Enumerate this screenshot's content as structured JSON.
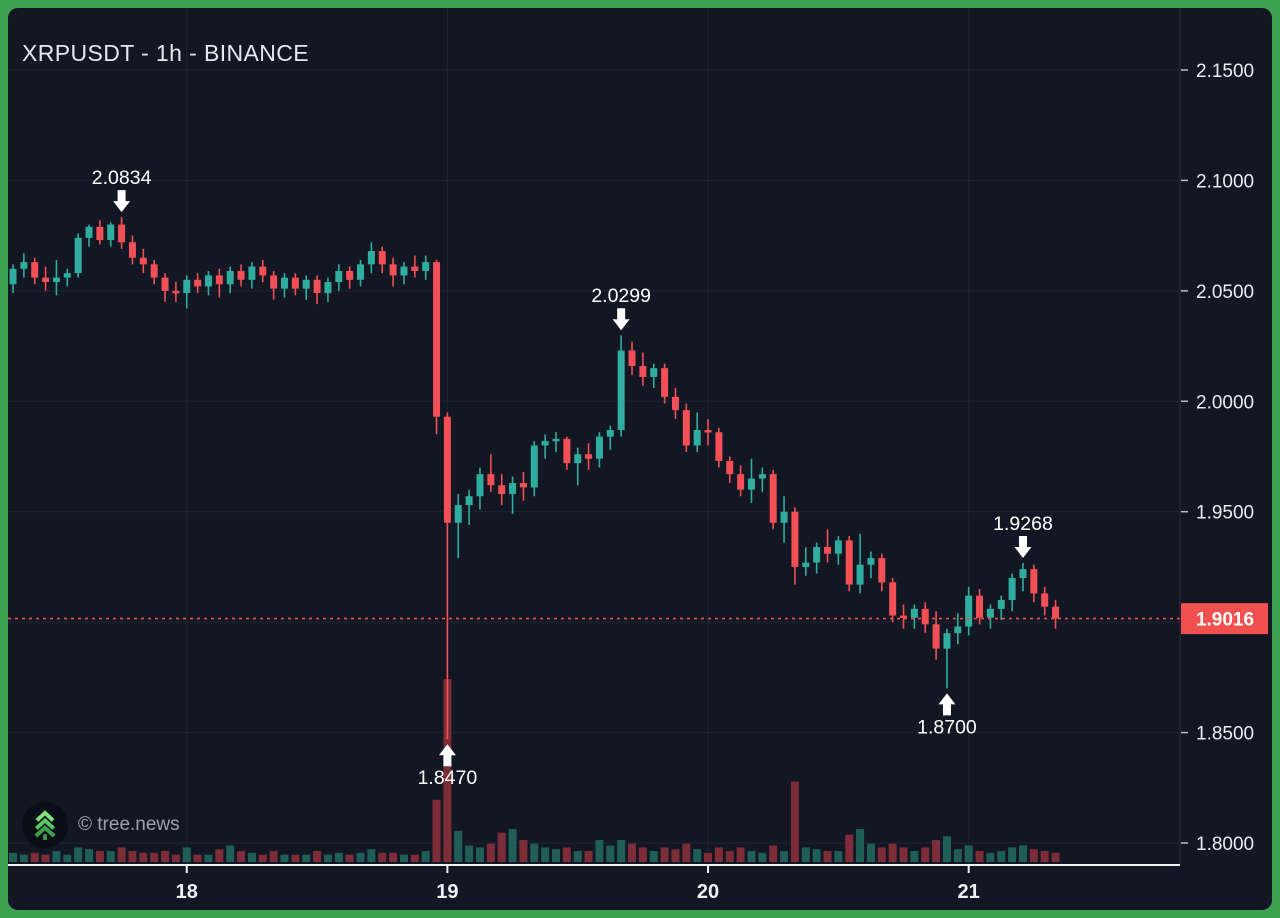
{
  "app": {
    "title": "XRPUSDT - 1h - BINANCE",
    "watermark": "© tree.news"
  },
  "colors": {
    "frame_green": "#3da14f",
    "background": "#121723",
    "grid": "#1d2433",
    "axis_line": "#272d3d",
    "axis_bottom_line": "#f2f3f5",
    "axis_text": "#e9ecf2",
    "candle_up": "#2fae9f",
    "candle_down": "#f25056",
    "volume_up": "#1f5f58",
    "volume_down": "#7d2d37",
    "last_price_red": "#f0504e",
    "annotation_text": "#ffffff",
    "watermark_text": "#9ba1ad",
    "logo_green_light": "#7fe07c",
    "logo_green_mid": "#55c866",
    "logo_green_dark": "#3da04b"
  },
  "chart_data": {
    "type": "candlestick",
    "symbol": "XRPUSDT",
    "interval": "1h",
    "exchange": "BINANCE",
    "title": "XRPUSDT - 1h - BINANCE",
    "legend_position": "none",
    "grid": true,
    "y_axis": {
      "side": "right",
      "labels": [
        {
          "text": "2.1500",
          "price": 2.15
        },
        {
          "text": "2.1000",
          "price": 2.1
        },
        {
          "text": "2.0500",
          "price": 2.05
        },
        {
          "text": "2.0000",
          "price": 2.0
        },
        {
          "text": "1.9500",
          "price": 1.95
        },
        {
          "text": "1.8500",
          "price": 1.85
        },
        {
          "text": "1.8000",
          "price": 1.8
        }
      ],
      "grid_prices": [
        2.15,
        2.1,
        2.05,
        2.0,
        1.95,
        1.9,
        1.85,
        1.8
      ],
      "visible_range": [
        1.8,
        2.15
      ]
    },
    "x_axis": {
      "day_ticks": [
        {
          "label": "18",
          "candle_index": 16
        },
        {
          "label": "19",
          "candle_index": 40
        },
        {
          "label": "20",
          "candle_index": 64
        },
        {
          "label": "21",
          "candle_index": 88
        }
      ]
    },
    "last_price": {
      "text": "1.9016",
      "value": 1.9016
    },
    "annotations": [
      {
        "text": "2.0834",
        "candle_index": 10,
        "direction": "down",
        "price": 2.0834
      },
      {
        "text": "2.0299",
        "candle_index": 56,
        "direction": "down",
        "price": 2.0299
      },
      {
        "text": "1.9268",
        "candle_index": 93,
        "direction": "down",
        "price": 1.9268
      },
      {
        "text": "1.8470",
        "candle_index": 40,
        "direction": "up",
        "price": 1.847
      },
      {
        "text": "1.8700",
        "candle_index": 86,
        "direction": "up",
        "price": 1.87
      }
    ],
    "candles_format": [
      "open",
      "high",
      "low",
      "close",
      "relative_volume"
    ],
    "candles": [
      [
        2.053,
        2.062,
        2.049,
        2.06,
        5
      ],
      [
        2.06,
        2.067,
        2.056,
        2.063,
        4
      ],
      [
        2.063,
        2.065,
        2.053,
        2.056,
        5
      ],
      [
        2.056,
        2.061,
        2.05,
        2.054,
        4
      ],
      [
        2.054,
        2.064,
        2.048,
        2.056,
        6
      ],
      [
        2.056,
        2.06,
        2.052,
        2.058,
        4
      ],
      [
        2.058,
        2.076,
        2.056,
        2.074,
        8
      ],
      [
        2.074,
        2.08,
        2.07,
        2.079,
        7
      ],
      [
        2.079,
        2.082,
        2.071,
        2.073,
        6
      ],
      [
        2.073,
        2.081,
        2.07,
        2.08,
        6
      ],
      [
        2.08,
        2.0834,
        2.069,
        2.072,
        8
      ],
      [
        2.072,
        2.075,
        2.062,
        2.065,
        6
      ],
      [
        2.065,
        2.069,
        2.058,
        2.062,
        5
      ],
      [
        2.062,
        2.064,
        2.053,
        2.056,
        5
      ],
      [
        2.056,
        2.058,
        2.045,
        2.05,
        6
      ],
      [
        2.05,
        2.054,
        2.045,
        2.049,
        4
      ],
      [
        2.049,
        2.057,
        2.042,
        2.055,
        8
      ],
      [
        2.055,
        2.058,
        2.049,
        2.052,
        4
      ],
      [
        2.052,
        2.059,
        2.048,
        2.057,
        4
      ],
      [
        2.057,
        2.06,
        2.047,
        2.053,
        7
      ],
      [
        2.053,
        2.061,
        2.049,
        2.059,
        9
      ],
      [
        2.059,
        2.062,
        2.052,
        2.055,
        6
      ],
      [
        2.055,
        2.063,
        2.051,
        2.061,
        5
      ],
      [
        2.061,
        2.064,
        2.054,
        2.057,
        4
      ],
      [
        2.057,
        2.059,
        2.046,
        2.051,
        6
      ],
      [
        2.051,
        2.058,
        2.047,
        2.056,
        4
      ],
      [
        2.056,
        2.058,
        2.048,
        2.051,
        4
      ],
      [
        2.051,
        2.057,
        2.046,
        2.055,
        4
      ],
      [
        2.055,
        2.057,
        2.044,
        2.049,
        6
      ],
      [
        2.049,
        2.056,
        2.045,
        2.054,
        4
      ],
      [
        2.054,
        2.062,
        2.05,
        2.059,
        5
      ],
      [
        2.059,
        2.061,
        2.051,
        2.055,
        4
      ],
      [
        2.055,
        2.064,
        2.052,
        2.062,
        5
      ],
      [
        2.062,
        2.072,
        2.058,
        2.068,
        7
      ],
      [
        2.068,
        2.07,
        2.058,
        2.062,
        5
      ],
      [
        2.062,
        2.065,
        2.052,
        2.057,
        5
      ],
      [
        2.057,
        2.063,
        2.053,
        2.061,
        4
      ],
      [
        2.061,
        2.066,
        2.056,
        2.059,
        4
      ],
      [
        2.059,
        2.066,
        2.055,
        2.063,
        6
      ],
      [
        2.063,
        2.064,
        1.985,
        1.993,
        34
      ],
      [
        1.993,
        1.995,
        1.847,
        1.945,
        100
      ],
      [
        1.945,
        1.958,
        1.929,
        1.953,
        17
      ],
      [
        1.953,
        1.96,
        1.944,
        1.957,
        9
      ],
      [
        1.957,
        1.97,
        1.951,
        1.967,
        8
      ],
      [
        1.967,
        1.976,
        1.959,
        1.962,
        10
      ],
      [
        1.962,
        1.967,
        1.953,
        1.958,
        16
      ],
      [
        1.958,
        1.966,
        1.949,
        1.963,
        18
      ],
      [
        1.963,
        1.968,
        1.955,
        1.961,
        12
      ],
      [
        1.961,
        1.982,
        1.957,
        1.98,
        10
      ],
      [
        1.98,
        1.985,
        1.974,
        1.982,
        8
      ],
      [
        1.982,
        1.986,
        1.977,
        1.983,
        7
      ],
      [
        1.983,
        1.984,
        1.969,
        1.972,
        8
      ],
      [
        1.972,
        1.979,
        1.962,
        1.976,
        6
      ],
      [
        1.976,
        1.981,
        1.969,
        1.974,
        6
      ],
      [
        1.974,
        1.986,
        1.97,
        1.984,
        12
      ],
      [
        1.984,
        1.989,
        1.978,
        1.987,
        9
      ],
      [
        1.987,
        2.0299,
        1.984,
        2.023,
        12
      ],
      [
        2.023,
        2.027,
        2.012,
        2.016,
        10
      ],
      [
        2.016,
        2.022,
        2.007,
        2.011,
        8
      ],
      [
        2.011,
        2.017,
        2.006,
        2.015,
        6
      ],
      [
        2.015,
        2.017,
        1.999,
        2.002,
        8
      ],
      [
        2.002,
        2.006,
        1.992,
        1.996,
        7
      ],
      [
        1.996,
        1.999,
        1.977,
        1.98,
        10
      ],
      [
        1.98,
        1.995,
        1.977,
        1.987,
        7
      ],
      [
        1.987,
        1.992,
        1.98,
        1.986,
        5
      ],
      [
        1.986,
        1.988,
        1.97,
        1.973,
        8
      ],
      [
        1.973,
        1.975,
        1.963,
        1.967,
        6
      ],
      [
        1.967,
        1.971,
        1.957,
        1.96,
        8
      ],
      [
        1.96,
        1.974,
        1.954,
        1.965,
        6
      ],
      [
        1.965,
        1.97,
        1.959,
        1.967,
        5
      ],
      [
        1.967,
        1.969,
        1.942,
        1.945,
        9
      ],
      [
        1.945,
        1.957,
        1.936,
        1.95,
        6
      ],
      [
        1.95,
        1.952,
        1.917,
        1.925,
        44
      ],
      [
        1.925,
        1.934,
        1.921,
        1.927,
        8
      ],
      [
        1.927,
        1.936,
        1.922,
        1.934,
        7
      ],
      [
        1.934,
        1.942,
        1.927,
        1.931,
        6
      ],
      [
        1.931,
        1.939,
        1.926,
        1.937,
        6
      ],
      [
        1.937,
        1.939,
        1.914,
        1.917,
        15
      ],
      [
        1.917,
        1.94,
        1.913,
        1.926,
        18
      ],
      [
        1.926,
        1.932,
        1.92,
        1.929,
        10
      ],
      [
        1.929,
        1.931,
        1.914,
        1.918,
        8
      ],
      [
        1.918,
        1.92,
        1.9,
        1.903,
        10
      ],
      [
        1.903,
        1.908,
        1.897,
        1.902,
        8
      ],
      [
        1.902,
        1.908,
        1.897,
        1.906,
        6
      ],
      [
        1.906,
        1.909,
        1.895,
        1.899,
        8
      ],
      [
        1.899,
        1.905,
        1.883,
        1.888,
        12
      ],
      [
        1.888,
        1.897,
        1.87,
        1.895,
        14
      ],
      [
        1.895,
        1.904,
        1.89,
        1.898,
        7
      ],
      [
        1.898,
        1.916,
        1.894,
        1.912,
        9
      ],
      [
        1.912,
        1.915,
        1.899,
        1.902,
        6
      ],
      [
        1.902,
        1.908,
        1.897,
        1.906,
        5
      ],
      [
        1.906,
        1.912,
        1.901,
        1.91,
        6
      ],
      [
        1.91,
        1.922,
        1.905,
        1.92,
        8
      ],
      [
        1.92,
        1.9268,
        1.914,
        1.924,
        9
      ],
      [
        1.924,
        1.926,
        1.909,
        1.913,
        7
      ],
      [
        1.913,
        1.916,
        1.903,
        1.907,
        6
      ],
      [
        1.907,
        1.91,
        1.897,
        1.9016,
        5
      ]
    ]
  }
}
